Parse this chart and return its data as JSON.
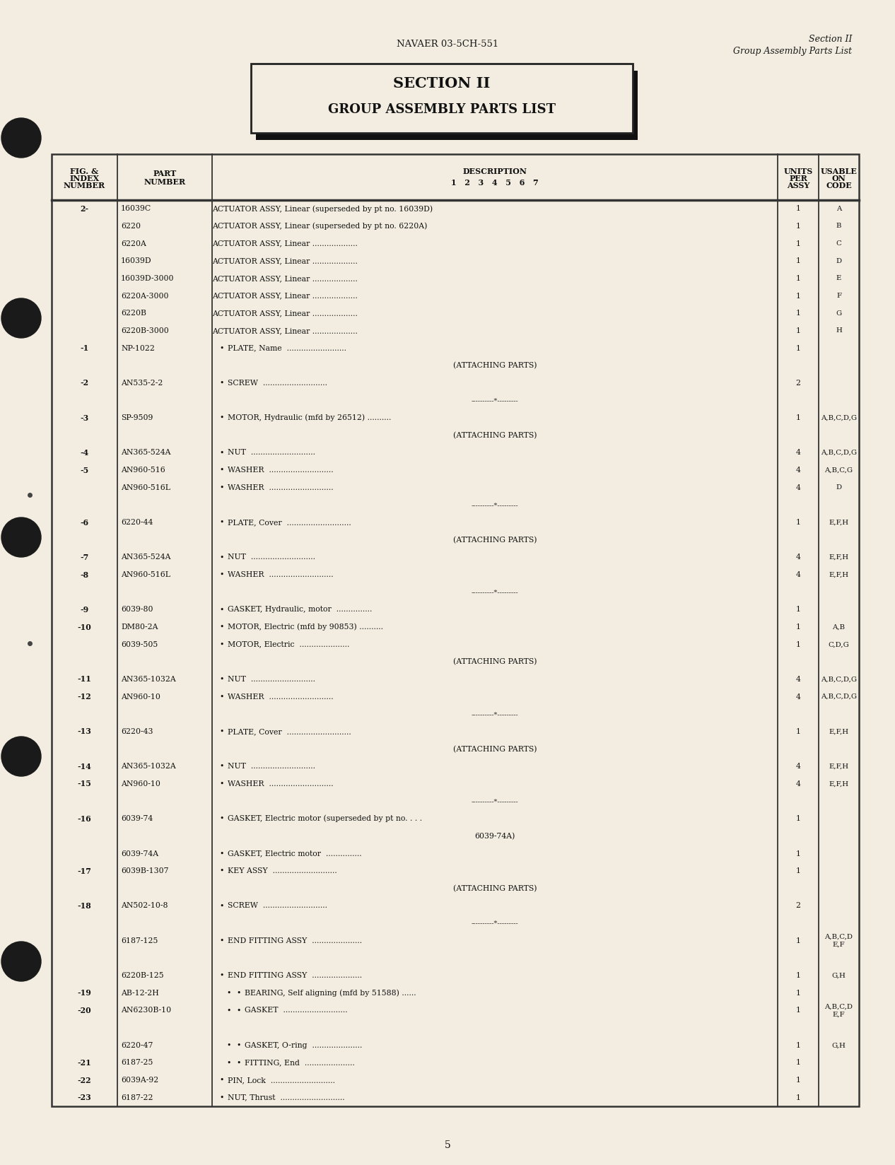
{
  "bg_color": "#f2ede0",
  "page_number": "5",
  "header_center": "NAVAER 03-5CH-551",
  "header_right_line1": "Section II",
  "header_right_line2": "Group Assembly Parts List",
  "section_title_line1": "SECTION II",
  "section_title_line2": "GROUP ASSEMBLY PARTS LIST",
  "rows": [
    {
      "fig": "2-",
      "part": "16039C",
      "indent": 0,
      "bullet": false,
      "desc": "ACTUATOR ASSY, Linear (superseded by pt no. 16039D)",
      "units": "1",
      "code": "A"
    },
    {
      "fig": "",
      "part": "6220",
      "indent": 0,
      "bullet": false,
      "desc": "ACTUATOR ASSY, Linear (superseded by pt no. 6220A)",
      "units": "1",
      "code": "B"
    },
    {
      "fig": "",
      "part": "6220A",
      "indent": 0,
      "bullet": false,
      "desc": "ACTUATOR ASSY, Linear ...................",
      "units": "1",
      "code": "C"
    },
    {
      "fig": "",
      "part": "16039D",
      "indent": 0,
      "bullet": false,
      "desc": "ACTUATOR ASSY, Linear ...................",
      "units": "1",
      "code": "D"
    },
    {
      "fig": "",
      "part": "16039D-3000",
      "indent": 0,
      "bullet": false,
      "desc": "ACTUATOR ASSY, Linear ...................",
      "units": "1",
      "code": "E"
    },
    {
      "fig": "",
      "part": "6220A-3000",
      "indent": 0,
      "bullet": false,
      "desc": "ACTUATOR ASSY, Linear ...................",
      "units": "1",
      "code": "F"
    },
    {
      "fig": "",
      "part": "6220B",
      "indent": 0,
      "bullet": false,
      "desc": "ACTUATOR ASSY, Linear ...................",
      "units": "1",
      "code": "G"
    },
    {
      "fig": "",
      "part": "6220B-3000",
      "indent": 0,
      "bullet": false,
      "desc": "ACTUATOR ASSY, Linear ...................",
      "units": "1",
      "code": "H"
    },
    {
      "fig": "-1",
      "part": "NP-1022",
      "indent": 1,
      "bullet": true,
      "desc": "PLATE, Name  .........................",
      "units": "1",
      "code": ""
    },
    {
      "fig": "",
      "part": "",
      "indent": 0,
      "bullet": false,
      "desc": "(ATTACHING PARTS)",
      "units": "",
      "code": "",
      "center_desc": true
    },
    {
      "fig": "-2",
      "part": "AN535-2-2",
      "indent": 1,
      "bullet": true,
      "desc": "SCREW  ...........................",
      "units": "2",
      "code": ""
    },
    {
      "fig": "",
      "part": "",
      "indent": 0,
      "bullet": false,
      "desc": "----------*---------",
      "units": "",
      "code": "",
      "separator": true
    },
    {
      "fig": "-3",
      "part": "SP-9509",
      "indent": 1,
      "bullet": true,
      "desc": "MOTOR, Hydraulic (mfd by 26512) ..........",
      "units": "1",
      "code": "A,B,C,D,G"
    },
    {
      "fig": "",
      "part": "",
      "indent": 0,
      "bullet": false,
      "desc": "(ATTACHING PARTS)",
      "units": "",
      "code": "",
      "center_desc": true
    },
    {
      "fig": "-4",
      "part": "AN365-524A",
      "indent": 1,
      "bullet": true,
      "desc": "NUT  ...........................",
      "units": "4",
      "code": "A,B,C,D,G"
    },
    {
      "fig": "-5",
      "part": "AN960-516",
      "indent": 1,
      "bullet": true,
      "desc": "WASHER  ...........................",
      "units": "4",
      "code": "A,B,C,G"
    },
    {
      "fig": "",
      "part": "AN960-516L",
      "indent": 1,
      "bullet": true,
      "desc": "WASHER  ...........................",
      "units": "4",
      "code": "D"
    },
    {
      "fig": "",
      "part": "",
      "indent": 0,
      "bullet": false,
      "desc": "----------*---------",
      "units": "",
      "code": "",
      "separator": true
    },
    {
      "fig": "-6",
      "part": "6220-44",
      "indent": 1,
      "bullet": true,
      "desc": "PLATE, Cover  ...........................",
      "units": "1",
      "code": "E,F,H"
    },
    {
      "fig": "",
      "part": "",
      "indent": 0,
      "bullet": false,
      "desc": "(ATTACHING PARTS)",
      "units": "",
      "code": "",
      "center_desc": true
    },
    {
      "fig": "-7",
      "part": "AN365-524A",
      "indent": 1,
      "bullet": true,
      "desc": "NUT  ...........................",
      "units": "4",
      "code": "E,F,H"
    },
    {
      "fig": "-8",
      "part": "AN960-516L",
      "indent": 1,
      "bullet": true,
      "desc": "WASHER  ...........................",
      "units": "4",
      "code": "E,F,H"
    },
    {
      "fig": "",
      "part": "",
      "indent": 0,
      "bullet": false,
      "desc": "----------*---------",
      "units": "",
      "code": "",
      "separator": true
    },
    {
      "fig": "-9",
      "part": "6039-80",
      "indent": 1,
      "bullet": true,
      "desc": "GASKET, Hydraulic, motor  ...............",
      "units": "1",
      "code": ""
    },
    {
      "fig": "-10",
      "part": "DM80-2A",
      "indent": 1,
      "bullet": true,
      "desc": "MOTOR, Electric (mfd by 90853) ..........",
      "units": "1",
      "code": "A,B"
    },
    {
      "fig": "",
      "part": "6039-505",
      "indent": 1,
      "bullet": true,
      "desc": "MOTOR, Electric  .....................",
      "units": "1",
      "code": "C,D,G"
    },
    {
      "fig": "",
      "part": "",
      "indent": 0,
      "bullet": false,
      "desc": "(ATTACHING PARTS)",
      "units": "",
      "code": "",
      "center_desc": true
    },
    {
      "fig": "-11",
      "part": "AN365-1032A",
      "indent": 1,
      "bullet": true,
      "desc": "NUT  ...........................",
      "units": "4",
      "code": "A,B,C,D,G"
    },
    {
      "fig": "-12",
      "part": "AN960-10",
      "indent": 1,
      "bullet": true,
      "desc": "WASHER  ...........................",
      "units": "4",
      "code": "A,B,C,D,G"
    },
    {
      "fig": "",
      "part": "",
      "indent": 0,
      "bullet": false,
      "desc": "----------*---------",
      "units": "",
      "code": "",
      "separator": true
    },
    {
      "fig": "-13",
      "part": "6220-43",
      "indent": 1,
      "bullet": true,
      "desc": "PLATE, Cover  ...........................",
      "units": "1",
      "code": "E,F,H"
    },
    {
      "fig": "",
      "part": "",
      "indent": 0,
      "bullet": false,
      "desc": "(ATTACHING PARTS)",
      "units": "",
      "code": "",
      "center_desc": true
    },
    {
      "fig": "-14",
      "part": "AN365-1032A",
      "indent": 1,
      "bullet": true,
      "desc": "NUT  ...........................",
      "units": "4",
      "code": "E,F,H"
    },
    {
      "fig": "-15",
      "part": "AN960-10",
      "indent": 1,
      "bullet": true,
      "desc": "WASHER  ...........................",
      "units": "4",
      "code": "E,F,H"
    },
    {
      "fig": "",
      "part": "",
      "indent": 0,
      "bullet": false,
      "desc": "----------*---------",
      "units": "",
      "code": "",
      "separator": true
    },
    {
      "fig": "-16",
      "part": "6039-74",
      "indent": 1,
      "bullet": true,
      "desc": "GASKET, Electric motor (superseded by pt no. . . .",
      "units": "1",
      "code": ""
    },
    {
      "fig": "",
      "part": "",
      "indent": 0,
      "bullet": false,
      "desc": "6039-74A)",
      "units": "",
      "code": "",
      "center_desc": true
    },
    {
      "fig": "",
      "part": "6039-74A",
      "indent": 1,
      "bullet": true,
      "desc": "GASKET, Electric motor  ...............",
      "units": "1",
      "code": ""
    },
    {
      "fig": "-17",
      "part": "6039B-1307",
      "indent": 1,
      "bullet": true,
      "desc": "KEY ASSY  ...........................",
      "units": "1",
      "code": ""
    },
    {
      "fig": "",
      "part": "",
      "indent": 0,
      "bullet": false,
      "desc": "(ATTACHING PARTS)",
      "units": "",
      "code": "",
      "center_desc": true
    },
    {
      "fig": "-18",
      "part": "AN502-10-8",
      "indent": 1,
      "bullet": true,
      "desc": "SCREW  ...........................",
      "units": "2",
      "code": ""
    },
    {
      "fig": "",
      "part": "",
      "indent": 0,
      "bullet": false,
      "desc": "----------*---------",
      "units": "",
      "code": "",
      "separator": true
    },
    {
      "fig": "",
      "part": "6187-125",
      "indent": 1,
      "bullet": true,
      "desc": "END FITTING ASSY  .....................",
      "units": "1",
      "code": "A,B,C,D\nE,F"
    },
    {
      "fig": "",
      "part": "",
      "indent": 0,
      "bullet": false,
      "desc": "",
      "units": "",
      "code": ""
    },
    {
      "fig": "",
      "part": "6220B-125",
      "indent": 1,
      "bullet": true,
      "desc": "END FITTING ASSY  .....................",
      "units": "1",
      "code": "G,H"
    },
    {
      "fig": "-19",
      "part": "AB-12-2H",
      "indent": 2,
      "bullet": true,
      "desc": "BEARING, Self aligning (mfd by 51588) ......",
      "units": "1",
      "code": ""
    },
    {
      "fig": "-20",
      "part": "AN6230B-10",
      "indent": 2,
      "bullet": true,
      "desc": "GASKET  ...........................",
      "units": "1",
      "code": "A,B,C,D\nE,F"
    },
    {
      "fig": "",
      "part": "",
      "indent": 0,
      "bullet": false,
      "desc": "",
      "units": "",
      "code": ""
    },
    {
      "fig": "",
      "part": "6220-47",
      "indent": 2,
      "bullet": true,
      "desc": "GASKET, O-ring  .....................",
      "units": "1",
      "code": "G,H"
    },
    {
      "fig": "-21",
      "part": "6187-25",
      "indent": 2,
      "bullet": true,
      "desc": "FITTING, End  .....................",
      "units": "1",
      "code": ""
    },
    {
      "fig": "-22",
      "part": "6039A-92",
      "indent": 1,
      "bullet": true,
      "desc": "PIN, Lock  ...........................",
      "units": "1",
      "code": ""
    },
    {
      "fig": "-23",
      "part": "6187-22",
      "indent": 1,
      "bullet": true,
      "desc": "NUT, Thrust  ...........................",
      "units": "1",
      "code": ""
    }
  ]
}
